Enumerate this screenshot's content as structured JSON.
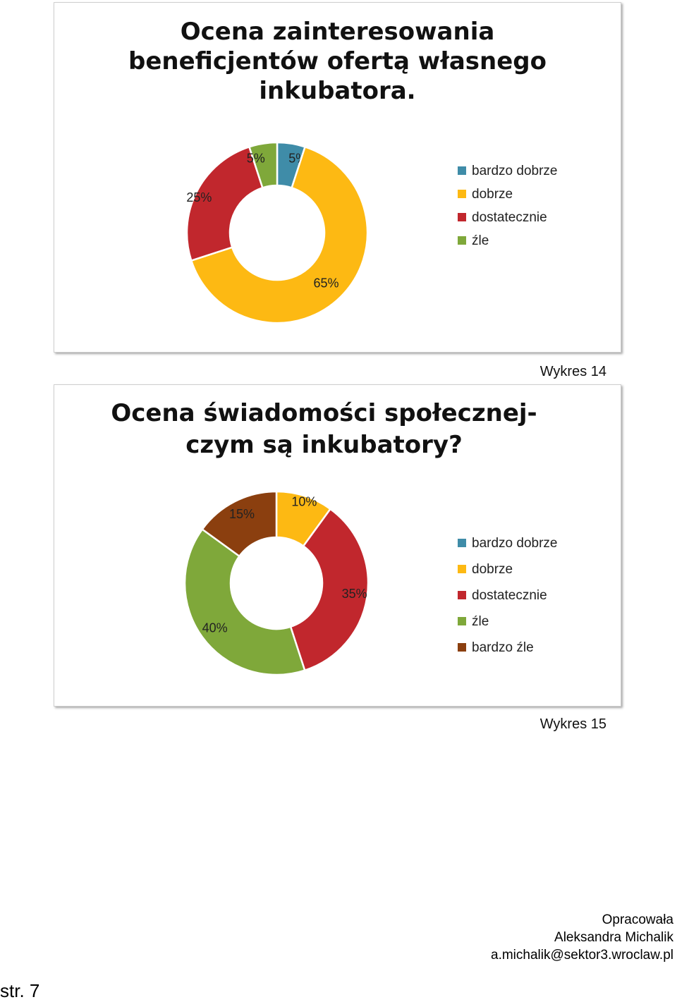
{
  "chart_data": [
    {
      "type": "pie",
      "donut": true,
      "title_lines": [
        "Ocena zainteresowania",
        "beneficjentów ofertą własnego",
        "inkubatora."
      ],
      "categories": [
        "bardzo dobrze",
        "dobrze",
        "dostatecznie",
        "źle"
      ],
      "values": [
        5,
        65,
        25,
        5
      ],
      "data_labels": [
        "5%",
        "65%",
        "25%",
        "5%"
      ],
      "colors": [
        "#3F8CA8",
        "#FDB913",
        "#C1272D",
        "#7FA83A"
      ],
      "legend_position": "right"
    },
    {
      "type": "pie",
      "donut": true,
      "title_lines": [
        "Ocena świadomości społecznej-",
        "czym są inkubatory?"
      ],
      "categories": [
        "bardzo dobrze",
        "dobrze",
        "dostatecznie",
        "źle",
        "bardzo źle"
      ],
      "values": [
        0,
        10,
        35,
        40,
        15
      ],
      "data_labels": [
        "",
        "10%",
        "35%",
        "40%",
        "15%"
      ],
      "colors": [
        "#3F8CA8",
        "#FDB913",
        "#C1272D",
        "#7FA83A",
        "#8B3F0F"
      ],
      "legend_position": "right"
    }
  ],
  "captions": [
    "Wykres 14",
    "Wykres 15"
  ],
  "footer": {
    "line1": "Opracowała",
    "line2": "Aleksandra Michalik",
    "line3": "a.michalik@sektor3.wroclaw.pl"
  },
  "page_number": "str. 7"
}
